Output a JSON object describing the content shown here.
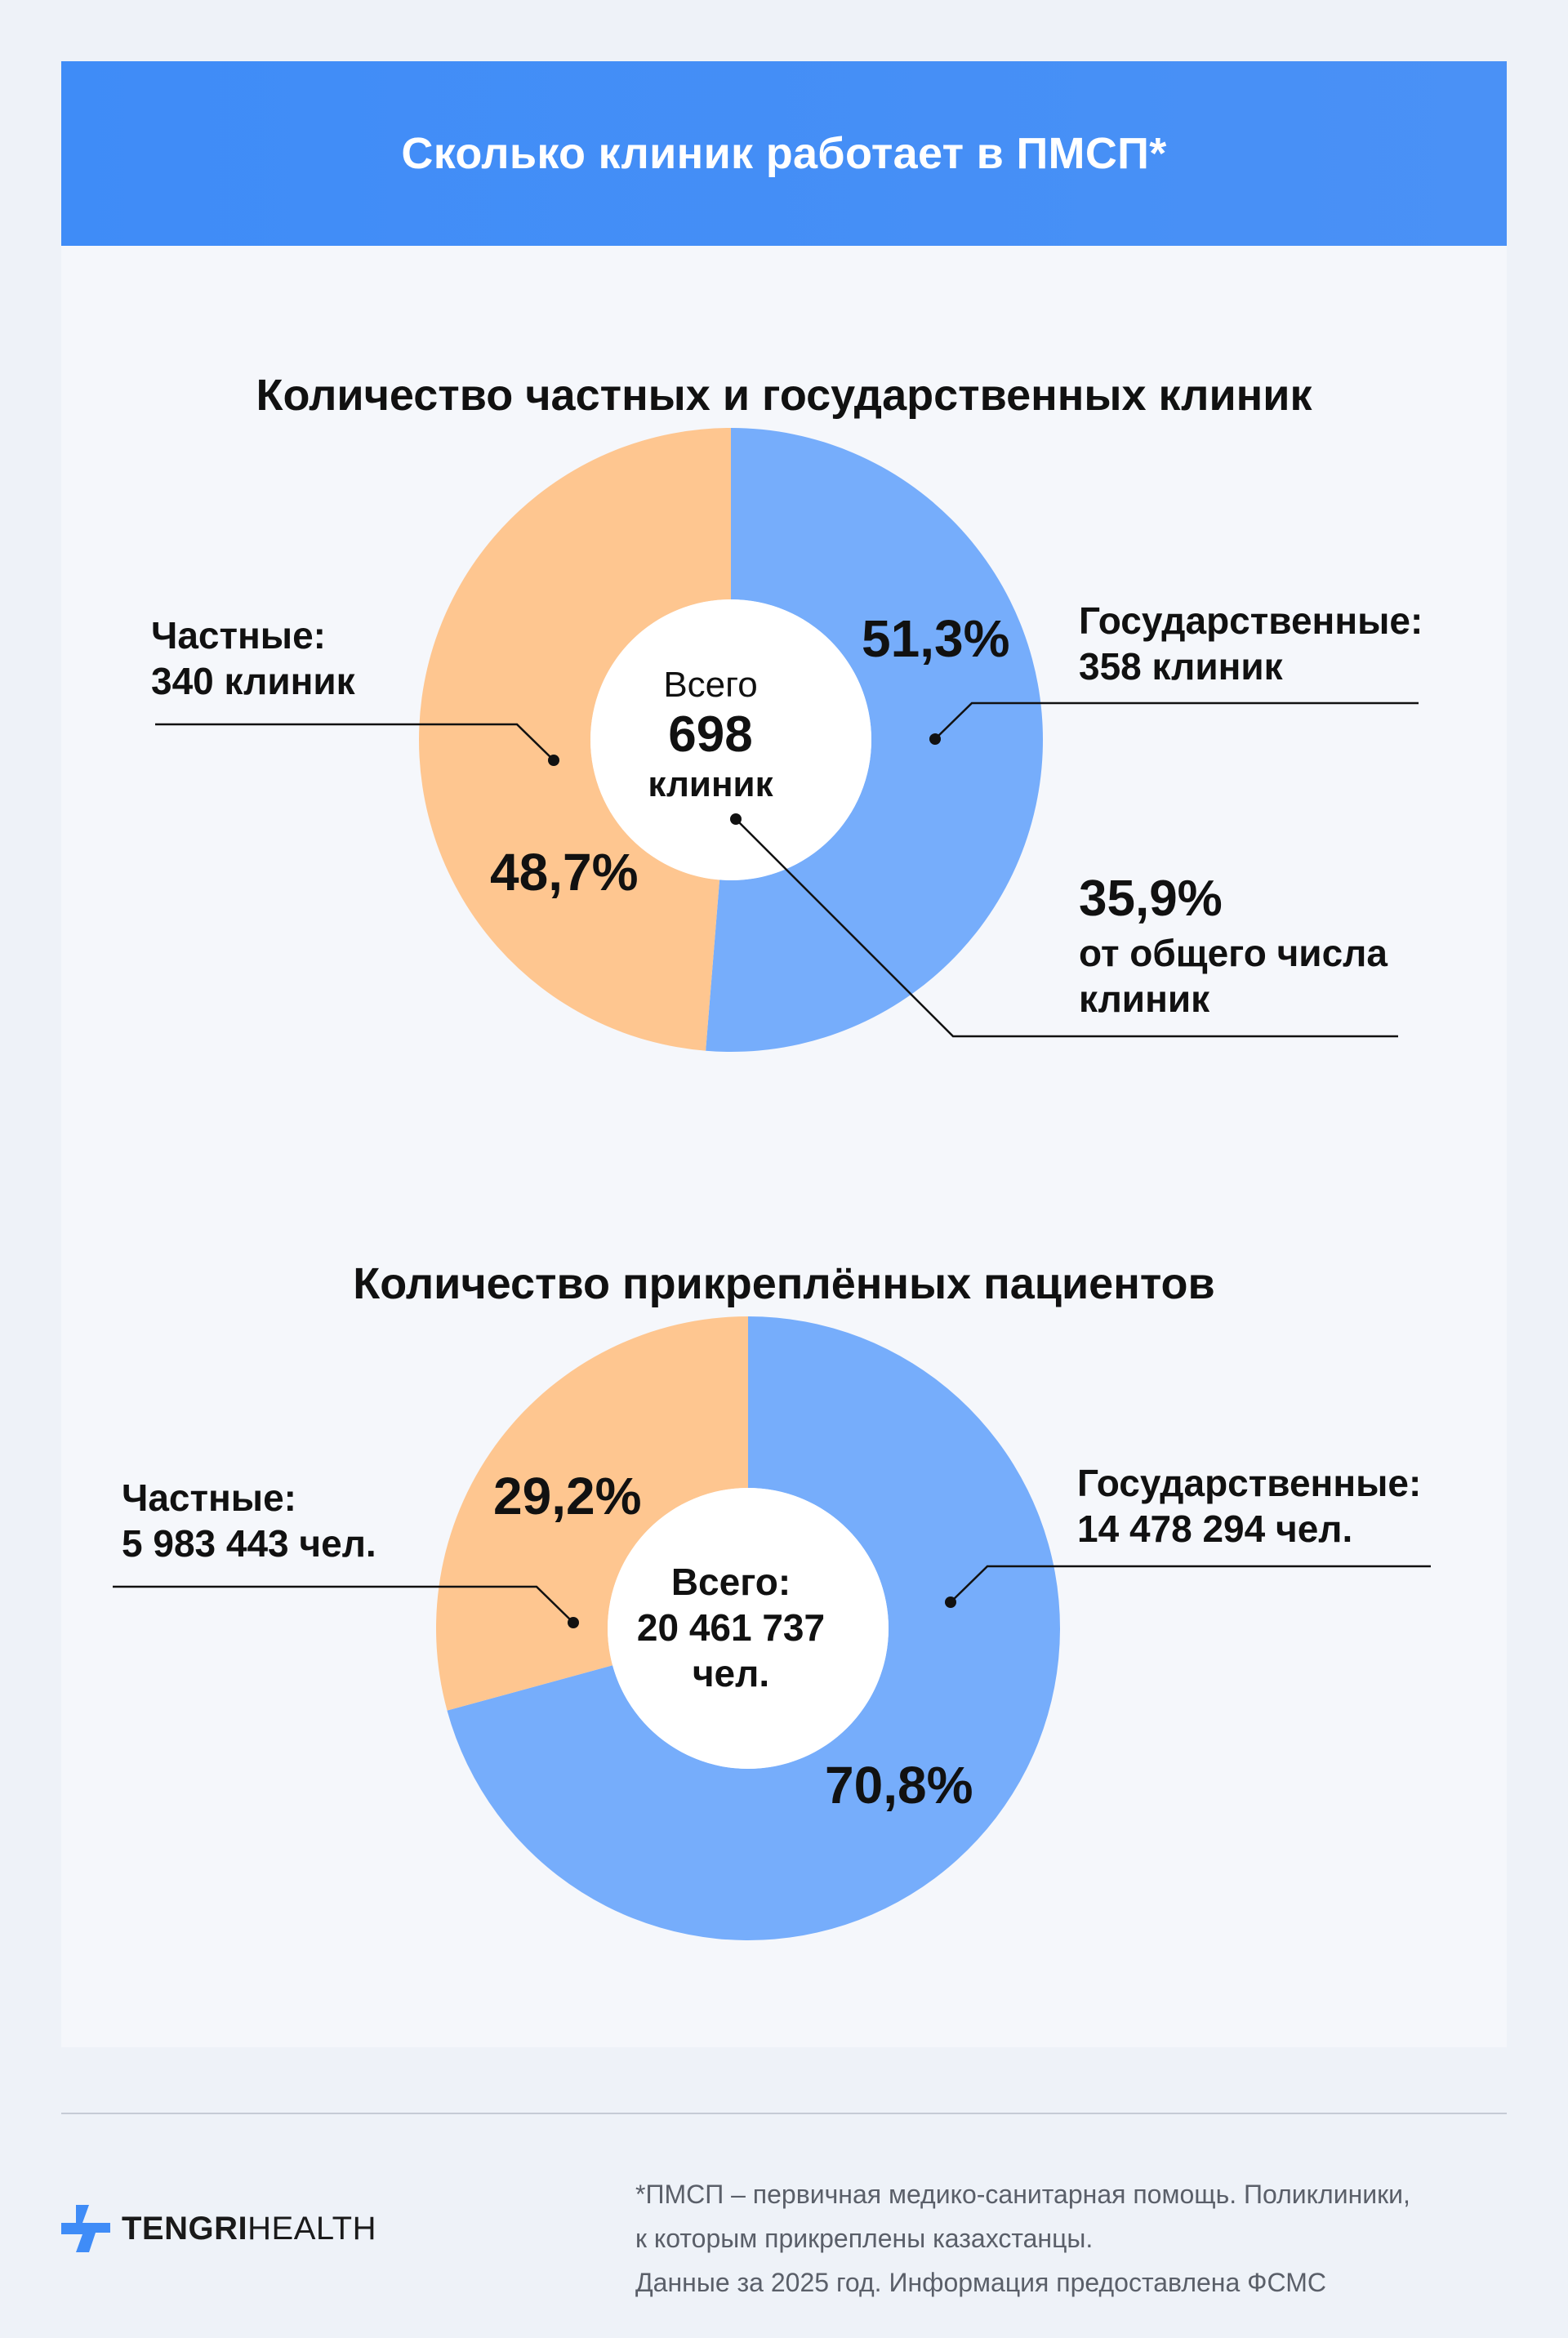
{
  "header": {
    "title": "Сколько клиник работает в ПМСП*"
  },
  "colors": {
    "government": "#76adfb",
    "private": "#fec690",
    "header": "#4390f7"
  },
  "chart_data": [
    {
      "type": "pie",
      "title": "Количество частных и государственных клиник",
      "series": [
        {
          "name": "Государственные",
          "value": 358,
          "percent": 51.3,
          "percent_label": "51,3%",
          "label_line1": "Государственные:",
          "label_line2": "358 клиник"
        },
        {
          "name": "Частные",
          "value": 340,
          "percent": 48.7,
          "percent_label": "48,7%",
          "label_line1": "Частные:",
          "label_line2": "340 клиник"
        }
      ],
      "center": {
        "line1": "Всего",
        "line2": "698",
        "line3": "клиник"
      },
      "annotation": {
        "value": "35,9%",
        "line1": "от общего числа",
        "line2": "клиник"
      }
    },
    {
      "type": "pie",
      "title": "Количество прикреплённых пациентов",
      "series": [
        {
          "name": "Государственные",
          "value": 14478294,
          "percent": 70.8,
          "percent_label": "70,8%",
          "label_line1": "Государственные:",
          "label_line2": "14 478 294 чел."
        },
        {
          "name": "Частные",
          "value": 5983443,
          "percent": 29.2,
          "percent_label": "29,2%",
          "label_line1": "Частные:",
          "label_line2": "5 983 443 чел."
        }
      ],
      "center": {
        "line1": "Всего:",
        "line2": "20 461 737",
        "line3": "чел."
      }
    }
  ],
  "footer": {
    "logo_bold": "TENGRI",
    "logo_thin": "HEALTH",
    "note_line1": "*ПМСП – первичная медико-санитарная помощь. Поликлиники,",
    "note_line2": "к которым прикреплены казахстанцы.",
    "note_line3": "Данные за 2025 год. Информация предоставлена ФСМС"
  }
}
